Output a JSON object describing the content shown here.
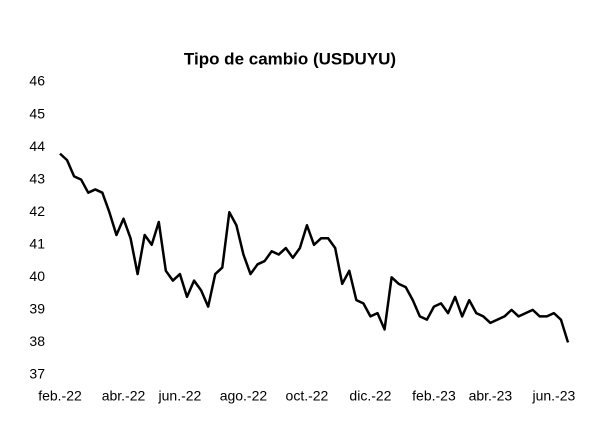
{
  "chart_data": {
    "type": "line",
    "title": "Tipo de cambio (USDUYU)",
    "categories": [
      "feb.-22",
      null,
      null,
      null,
      null,
      null,
      null,
      null,
      null,
      "abr.-22",
      null,
      null,
      null,
      null,
      null,
      null,
      null,
      "jun.-22",
      null,
      null,
      null,
      null,
      null,
      null,
      null,
      null,
      "ago.-22",
      null,
      null,
      null,
      null,
      null,
      null,
      null,
      null,
      "oct.-22",
      null,
      null,
      null,
      null,
      null,
      null,
      null,
      null,
      "dic.-22",
      null,
      null,
      null,
      null,
      null,
      null,
      null,
      null,
      "feb.-23",
      null,
      null,
      null,
      null,
      null,
      null,
      null,
      "abr.-23",
      null,
      null,
      null,
      null,
      null,
      null,
      null,
      null,
      "jun.-23",
      null,
      null
    ],
    "series": [
      {
        "name": "USDUYU",
        "color": "#000000",
        "values": [
          43.8,
          43.6,
          43.1,
          43.0,
          42.6,
          42.7,
          42.6,
          42.0,
          41.3,
          41.8,
          41.2,
          40.1,
          41.3,
          41.0,
          41.7,
          40.2,
          39.9,
          40.1,
          39.4,
          39.9,
          39.6,
          39.1,
          40.1,
          40.3,
          42.0,
          41.6,
          40.7,
          40.1,
          40.4,
          40.5,
          40.8,
          40.7,
          40.9,
          40.6,
          40.9,
          41.6,
          41.0,
          41.2,
          41.2,
          40.9,
          39.8,
          40.2,
          39.3,
          39.2,
          38.8,
          38.9,
          38.4,
          40.0,
          39.8,
          39.7,
          39.3,
          38.8,
          38.7,
          39.1,
          39.2,
          38.9,
          39.4,
          38.8,
          39.3,
          38.9,
          38.8,
          38.6,
          38.7,
          38.8,
          39.0,
          38.8,
          38.9,
          39.0,
          38.8,
          38.8,
          38.9,
          38.7,
          38.0
        ]
      }
    ],
    "ylim": [
      37,
      46
    ],
    "yticks": [
      37,
      38,
      39,
      40,
      41,
      42,
      43,
      44,
      45,
      46
    ],
    "grid": false
  }
}
